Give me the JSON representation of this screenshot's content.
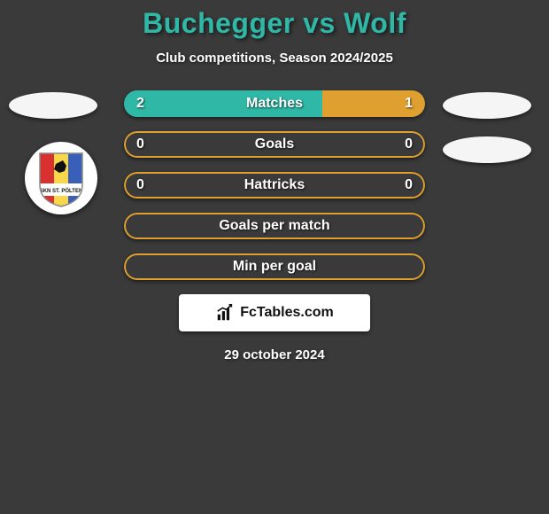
{
  "title": "Buchegger vs Wolf",
  "subtitle": "Club competitions, Season 2024/2025",
  "date": "29 october 2024",
  "fctables_label": "FcTables.com",
  "colors": {
    "title": "#2fb8a6",
    "background": "#3a3a3a",
    "badge_bg": "#f5f5f5"
  },
  "bars": [
    {
      "label": "Matches",
      "left_value": "2",
      "right_value": "1",
      "left_color": "#2fb8a6",
      "right_color": "#e0a030",
      "left_width_pct": 66,
      "right_width_pct": 34,
      "border_color": "#2fb8a6"
    },
    {
      "label": "Goals",
      "left_value": "0",
      "right_value": "0",
      "left_color": "#e0a030",
      "right_color": "#e0a030",
      "left_width_pct": 0,
      "right_width_pct": 0,
      "border_color": "#e0a030"
    },
    {
      "label": "Hattricks",
      "left_value": "0",
      "right_value": "0",
      "left_color": "#e0a030",
      "right_color": "#e0a030",
      "left_width_pct": 0,
      "right_width_pct": 0,
      "border_color": "#e0a030"
    },
    {
      "label": "Goals per match",
      "left_value": "",
      "right_value": "",
      "left_color": "#e0a030",
      "right_color": "#e0a030",
      "left_width_pct": 0,
      "right_width_pct": 0,
      "border_color": "#e0a030"
    },
    {
      "label": "Min per goal",
      "left_value": "",
      "right_value": "",
      "left_color": "#e0a030",
      "right_color": "#e0a030",
      "left_width_pct": 0,
      "right_width_pct": 0,
      "border_color": "#e0a030"
    }
  ],
  "club_logo": {
    "label": "SKN ST. PÖLTEN",
    "stripes": [
      "#d93030",
      "#f8d848",
      "#3a5fb8"
    ],
    "wolf_color": "#111111"
  }
}
